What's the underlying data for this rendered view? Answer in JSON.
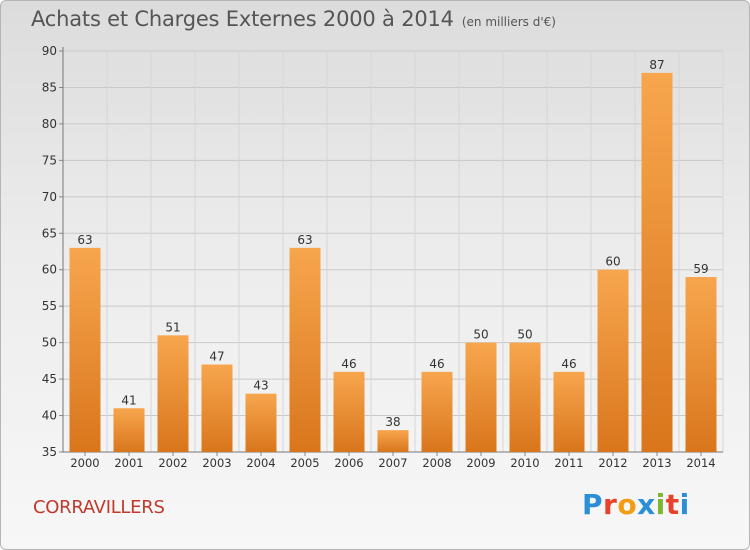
{
  "header": {
    "title": "Achats et Charges Externes 2000 à 2014",
    "subtitle": "(en milliers d'€)"
  },
  "footer": {
    "commune": "CORRAVILLERS",
    "logo_letters": [
      "P",
      "r",
      "o",
      "x",
      "i",
      "t",
      "i"
    ],
    "logo_colors": [
      "#2b8fd8",
      "#e8412c",
      "#f39c12",
      "#2b8fd8",
      "#7cb82f",
      "#e8412c",
      "#2b8fd8"
    ]
  },
  "chart_data": {
    "type": "bar",
    "title": "Achats et Charges Externes 2000 à 2014",
    "subtitle": "(en milliers d'€)",
    "categories": [
      "2000",
      "2001",
      "2002",
      "2003",
      "2004",
      "2005",
      "2006",
      "2007",
      "2008",
      "2009",
      "2010",
      "2011",
      "2012",
      "2013",
      "2014"
    ],
    "values": [
      63,
      41,
      51,
      47,
      43,
      63,
      46,
      38,
      46,
      50,
      50,
      46,
      60,
      87,
      59
    ],
    "ylim": [
      35,
      90
    ],
    "yticks": [
      35,
      40,
      45,
      50,
      55,
      60,
      65,
      70,
      75,
      80,
      85,
      90
    ],
    "grid": true,
    "bar_color_light": "#f7a64e",
    "bar_color_dark": "#d9761c"
  }
}
